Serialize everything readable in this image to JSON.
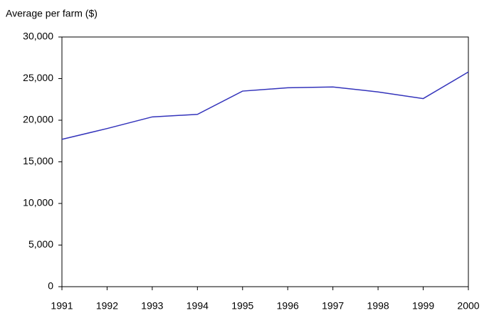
{
  "chart_data": {
    "type": "line",
    "y_label": "Average per farm ($)",
    "categories": [
      "1991",
      "1992",
      "1993",
      "1994",
      "1995",
      "1996",
      "1997",
      "1998",
      "1999",
      "2000"
    ],
    "series": [
      {
        "name": "Average per farm",
        "color": "#3333bb",
        "values": [
          17700,
          19000,
          20400,
          20700,
          23500,
          23900,
          24000,
          23400,
          22600,
          25800
        ]
      }
    ],
    "ylim": [
      0,
      30000
    ],
    "yticks": [
      0,
      {
        "value": 5000,
        "label": "5,000"
      },
      {
        "value": 10000,
        "label": "10,000"
      },
      {
        "value": 15000,
        "label": "15,000"
      },
      {
        "value": 20000,
        "label": "20,000"
      },
      {
        "value": 25000,
        "label": "25,000"
      },
      {
        "value": 30000,
        "label": "30,000"
      }
    ],
    "grid": false
  }
}
